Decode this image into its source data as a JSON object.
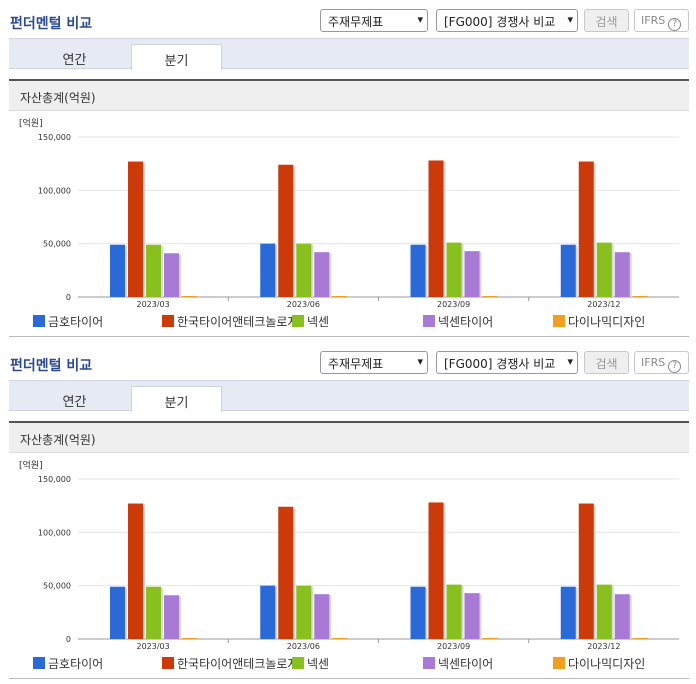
{
  "panels": [
    {
      "title": "펀더멘털 비교",
      "select1": "주재무제표",
      "select2": "[FG000] 경쟁사 비교",
      "search_label": "검색",
      "ifrs_label": "IFRS",
      "help": "?",
      "tabs": [
        "연간",
        "분기"
      ],
      "active_tab": "분기",
      "section_title": "자산총계(억원)"
    },
    {
      "title": "펀더멘털 비교",
      "select1": "주재무제표",
      "select2": "[FG000] 경쟁사 비교",
      "search_label": "검색",
      "ifrs_label": "IFRS",
      "help": "?",
      "tabs": [
        "연간",
        "분기"
      ],
      "active_tab": "분기",
      "section_title": "자산총계(억원)"
    }
  ],
  "chart_data": [
    {
      "type": "bar",
      "unit": "[억원]",
      "categories": [
        "2023/03",
        "2023/06",
        "2023/09",
        "2023/12"
      ],
      "ylim": [
        0,
        150000
      ],
      "yticks": [
        0,
        50000,
        100000,
        150000
      ],
      "ytick_labels": [
        "0",
        "50,000",
        "100,000",
        "150,000"
      ],
      "legend_position": "bottom",
      "series": [
        {
          "name": "금호타이어",
          "color": "#2a6ad8",
          "values": [
            49000,
            50000,
            49000,
            49000
          ]
        },
        {
          "name": "한국타이어앤테크놀로지",
          "color": "#cc3a0a",
          "values": [
            127000,
            124000,
            128000,
            127000
          ]
        },
        {
          "name": "넥센",
          "color": "#88c020",
          "values": [
            49000,
            50000,
            51000,
            51000
          ]
        },
        {
          "name": "넥센타이어",
          "color": "#a87ad6",
          "values": [
            41000,
            42000,
            43000,
            42000
          ]
        },
        {
          "name": "다이나믹디자인",
          "color": "#f0a020",
          "values": [
            400,
            400,
            400,
            400
          ]
        }
      ]
    },
    {
      "type": "bar",
      "unit": "[억원]",
      "categories": [
        "2023/03",
        "2023/06",
        "2023/09",
        "2023/12"
      ],
      "ylim": [
        0,
        150000
      ],
      "yticks": [
        0,
        50000,
        100000,
        150000
      ],
      "ytick_labels": [
        "0",
        "50,000",
        "100,000",
        "150,000"
      ],
      "legend_position": "bottom",
      "series": [
        {
          "name": "금호타이어",
          "color": "#2a6ad8",
          "values": [
            49000,
            50000,
            49000,
            49000
          ]
        },
        {
          "name": "한국타이어앤테크놀로지",
          "color": "#cc3a0a",
          "values": [
            127000,
            124000,
            128000,
            127000
          ]
        },
        {
          "name": "넥센",
          "color": "#88c020",
          "values": [
            49000,
            50000,
            51000,
            51000
          ]
        },
        {
          "name": "넥센타이어",
          "color": "#a87ad6",
          "values": [
            41000,
            42000,
            43000,
            42000
          ]
        },
        {
          "name": "다이나믹디자인",
          "color": "#f0a020",
          "values": [
            400,
            400,
            400,
            400
          ]
        }
      ]
    }
  ]
}
